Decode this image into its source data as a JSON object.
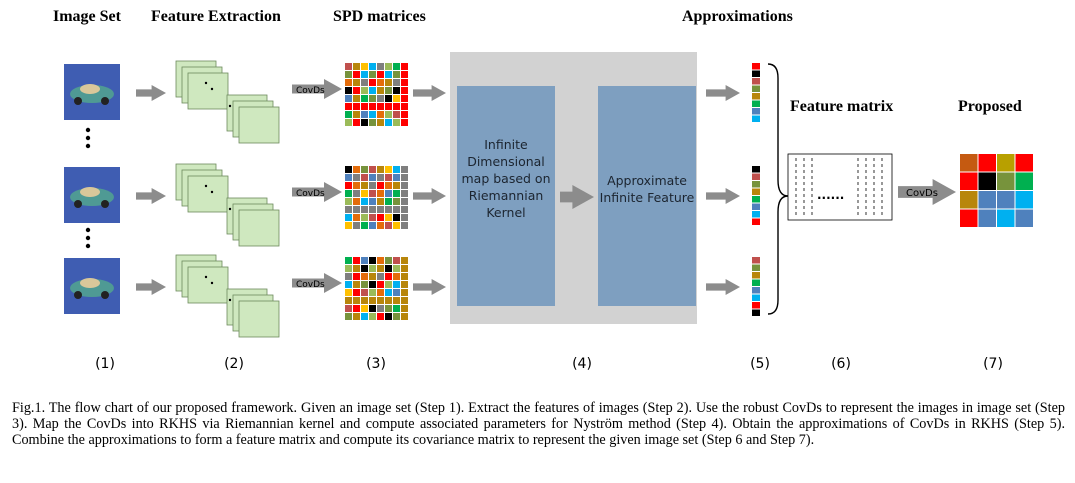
{
  "headers": {
    "image_set": "Image Set",
    "feature_extraction": "Feature Extraction",
    "spd_matrices": "SPD matrices",
    "approximations": "Approximations",
    "feature_matrix": "Feature matrix",
    "proposed": "Proposed"
  },
  "steps": [
    "(1)",
    "(2)",
    "(3)",
    "(4)",
    "(5)",
    "(6)",
    "(7)"
  ],
  "covds_label": "CovDs",
  "rkhs_box_text": "Infinite Dimensional map based on Riemannian Kernel",
  "approx_box_text": "Approximate Infinite Feature",
  "feature_matrix_dots": "......",
  "caption": "Fig.1. The flow chart of our proposed framework. Given an image set (Step 1). Extract the features of images (Step 2). Use the robust CovDs to represent the images in image set (Step 3). Map the CovDs into RKHS via Riemannian kernel and compute associated parameters for Nyström method (Step 4). Obtain the approximations of CovDs in RKHS (Step 5). Combine the approximations to form a feature matrix and compute its covariance matrix to represent the given image set (Step 6 and Step 7).",
  "colors": {
    "arrow": "#8c8c8c",
    "feature_page_fill": "#cfe8bf",
    "rkhs_panel": "#d2d2d2",
    "rkhs_box": "#7e9fc0",
    "image_background": "#3f5db2",
    "car": "#4f9a94",
    "spd_palette": [
      "#c0504d",
      "#ff0000",
      "#ffc000",
      "#000000",
      "#7f7f7f",
      "#77933c",
      "#00b050",
      "#b8860b",
      "#4f81bd",
      "#00b0f0",
      "#e46c0a",
      "#9bbb59"
    ],
    "vector_palette": [
      "#ff0000",
      "#000000",
      "#c0504d",
      "#77933c",
      "#b8860b",
      "#00b050",
      "#4f81bd",
      "#00b0f0"
    ],
    "proposed_grid": [
      [
        "#c55a11",
        "#ff0000",
        "#b8a000",
        "#ff0000"
      ],
      [
        "#ff0000",
        "#000000",
        "#77933c",
        "#00b050"
      ],
      [
        "#b8860b",
        "#4f81bd",
        "#4f81bd",
        "#00b0f0"
      ],
      [
        "#ff0000",
        "#4f81bd",
        "#00b0f0",
        "#4f81bd"
      ]
    ]
  }
}
